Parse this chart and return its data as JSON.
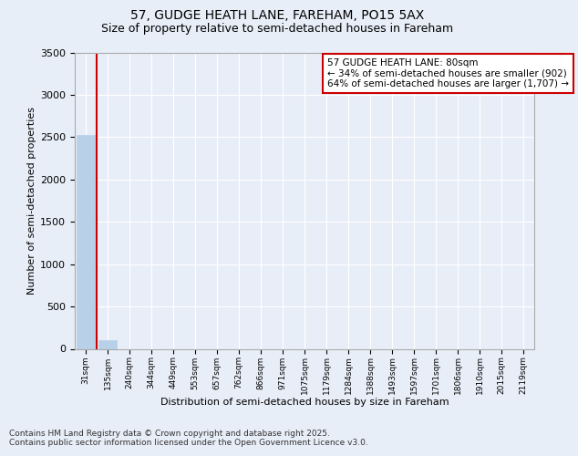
{
  "title_line1": "57, GUDGE HEATH LANE, FAREHAM, PO15 5AX",
  "title_line2": "Size of property relative to semi-detached houses in Fareham",
  "xlabel": "Distribution of semi-detached houses by size in Fareham",
  "ylabel": "Number of semi-detached properties",
  "categories": [
    "31sqm",
    "135sqm",
    "240sqm",
    "344sqm",
    "449sqm",
    "553sqm",
    "657sqm",
    "762sqm",
    "866sqm",
    "971sqm",
    "1075sqm",
    "1179sqm",
    "1284sqm",
    "1388sqm",
    "1493sqm",
    "1597sqm",
    "1701sqm",
    "1806sqm",
    "1910sqm",
    "2015sqm",
    "2119sqm"
  ],
  "values": [
    2530,
    105,
    0,
    0,
    0,
    0,
    0,
    0,
    0,
    0,
    0,
    0,
    0,
    0,
    0,
    0,
    0,
    0,
    0,
    0,
    0
  ],
  "bar_color": "#b8d0e8",
  "bar_edge_color": "#b8d0e8",
  "vline_color": "#cc0000",
  "annotation_text": "57 GUDGE HEATH LANE: 80sqm\n← 34% of semi-detached houses are smaller (902)\n64% of semi-detached houses are larger (1,707) →",
  "annotation_box_edge": "#cc0000",
  "ylim": [
    0,
    3500
  ],
  "yticks": [
    0,
    500,
    1000,
    1500,
    2000,
    2500,
    3000,
    3500
  ],
  "background_color": "#e8eef8",
  "grid_color": "#ffffff",
  "footer_text": "Contains HM Land Registry data © Crown copyright and database right 2025.\nContains public sector information licensed under the Open Government Licence v3.0.",
  "title_fontsize": 10,
  "subtitle_fontsize": 9,
  "annotation_fontsize": 7.5,
  "footer_fontsize": 6.5,
  "ylabel_fontsize": 8,
  "xlabel_fontsize": 8
}
